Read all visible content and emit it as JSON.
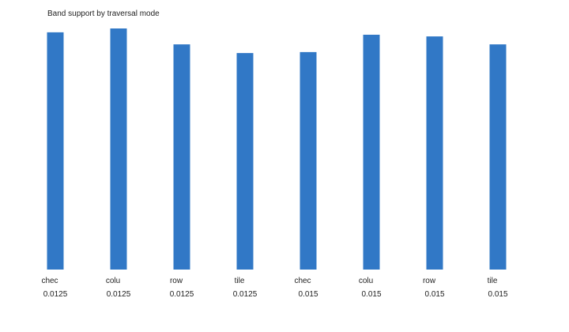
{
  "chart_data": {
    "type": "bar",
    "title": "Band support by traversal mode",
    "categories": [
      [
        "chec",
        "0.0125"
      ],
      [
        "colu",
        "0.0125"
      ],
      [
        "row",
        "0.0125"
      ],
      [
        "tile",
        "0.0125"
      ],
      [
        "chec",
        "0.015"
      ],
      [
        "colu",
        "0.015"
      ],
      [
        "row",
        "0.015"
      ],
      [
        "tile",
        "0.015"
      ]
    ],
    "values": [
      0.984,
      1.0,
      0.934,
      0.898,
      0.902,
      0.974,
      0.967,
      0.934
    ],
    "ylim": [
      0,
      1.0
    ],
    "grid": false,
    "legend": "none",
    "color": "#3178c6"
  }
}
